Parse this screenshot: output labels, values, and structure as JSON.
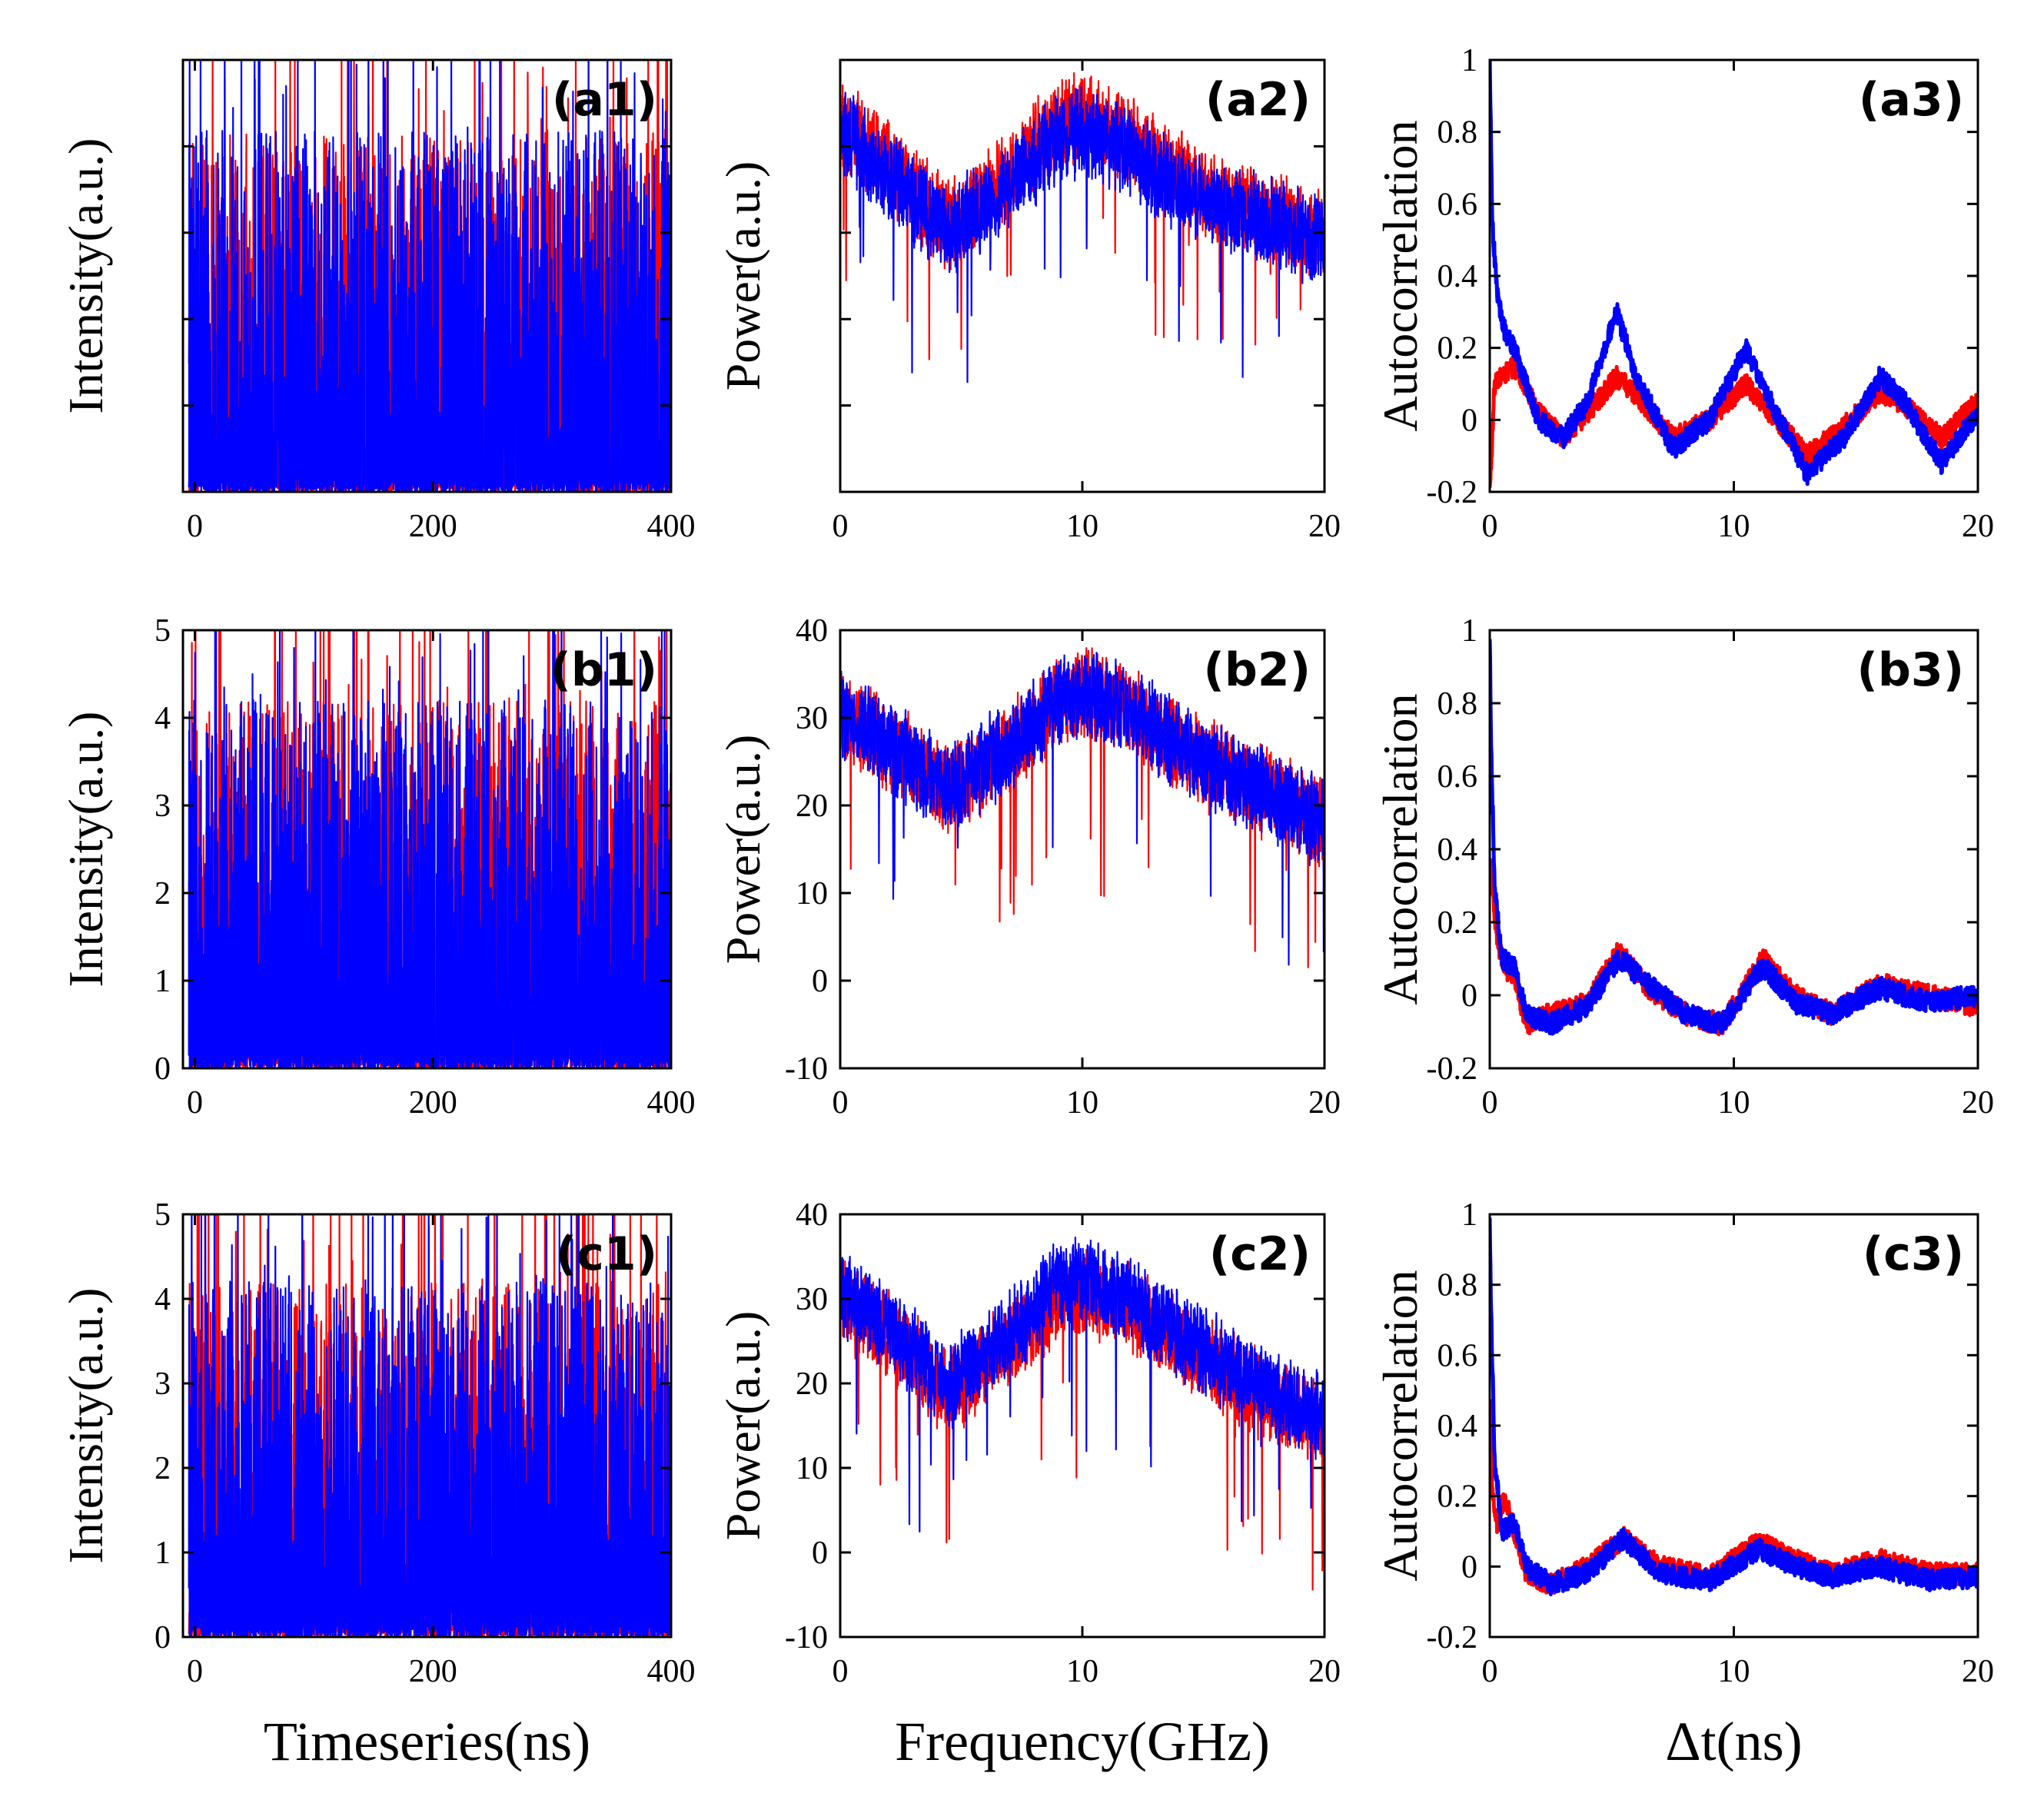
{
  "figure": {
    "colors": {
      "red": "#ff0000",
      "blue": "#0000ff",
      "axis": "#000000"
    },
    "bottom_xlabels": [
      "Timeseries(ns)",
      "Frequency(GHz)",
      "Δt(ns)"
    ]
  },
  "chart_data": [
    {
      "panel": "(a1)",
      "type": "line",
      "column": 0,
      "row": 0,
      "ylabel": "Intensity(a.u.)",
      "xlabel": "",
      "xlim": [
        -10,
        400
      ],
      "ylim": [
        0,
        5
      ],
      "xticks": [
        "0",
        "200",
        "400"
      ],
      "xtick_values": [
        0,
        200,
        400
      ],
      "yticks": [],
      "ytick_values": [],
      "series": [
        {
          "color": "#ff0000",
          "desc": "intensity timeseries, dense spiking, peaks up to ~5"
        },
        {
          "color": "#0000ff",
          "desc": "intensity timeseries, dense spiking, peaks up to ~5"
        }
      ]
    },
    {
      "panel": "(a2)",
      "type": "line",
      "column": 1,
      "row": 0,
      "ylabel": "Power(a.u.)",
      "xlabel": "",
      "xlim": [
        0,
        20
      ],
      "ylim": [
        -10,
        40
      ],
      "xticks": [
        "0",
        "10",
        "20"
      ],
      "xtick_values": [
        0,
        10,
        20
      ],
      "yticks": [],
      "ytick_values": [],
      "series": [
        {
          "color": "#ff0000",
          "x": [
            0,
            2,
            4.5,
            7,
            9,
            10,
            12,
            15,
            18,
            20
          ],
          "y": [
            36,
            31,
            24,
            30,
            36,
            37,
            34,
            28,
            25,
            23
          ]
        },
        {
          "color": "#0000ff",
          "x": [
            0,
            2,
            4.5,
            7,
            9,
            10,
            12,
            15,
            18,
            20
          ],
          "y": [
            35,
            30,
            23,
            29,
            34,
            35,
            32,
            27,
            24,
            22
          ]
        }
      ]
    },
    {
      "panel": "(a3)",
      "type": "line",
      "column": 2,
      "row": 0,
      "ylabel": "Autocorrelation",
      "xlabel": "",
      "xlim": [
        0,
        20
      ],
      "ylim": [
        -0.2,
        1
      ],
      "xticks": [
        "0",
        "10",
        "20"
      ],
      "xtick_values": [
        0,
        10,
        20
      ],
      "yticks": [
        "-0.2",
        "0",
        "0.2",
        "0.4",
        "0.6",
        "0.8",
        "1"
      ],
      "ytick_values": [
        -0.2,
        0,
        0.2,
        0.4,
        0.6,
        0.8,
        1
      ],
      "series": [
        {
          "color": "#ff0000",
          "x": [
            0,
            0.2,
            0.5,
            1,
            2,
            3,
            4,
            5.2,
            6,
            7.5,
            9,
            10.5,
            11.5,
            13,
            14.5,
            16,
            17,
            18.5,
            20
          ],
          "y": [
            -0.2,
            0.1,
            0.12,
            0.15,
            0.02,
            -0.05,
            0.02,
            0.12,
            0.07,
            -0.05,
            0.0,
            0.1,
            0.02,
            -0.1,
            -0.02,
            0.08,
            0.04,
            -0.05,
            0.05
          ]
        },
        {
          "color": "#0000ff",
          "x": [
            0,
            0.1,
            0.3,
            0.6,
            1,
            2,
            3,
            4,
            5.2,
            6,
            7.5,
            9,
            10.5,
            11.5,
            13,
            14.5,
            16,
            17,
            18.5,
            20
          ],
          "y": [
            1,
            0.55,
            0.35,
            0.25,
            0.2,
            0.0,
            -0.05,
            0.05,
            0.3,
            0.12,
            -0.08,
            0.0,
            0.2,
            0.05,
            -0.15,
            -0.05,
            0.12,
            0.05,
            -0.12,
            0.02
          ]
        }
      ]
    },
    {
      "panel": "(b1)",
      "type": "line",
      "column": 0,
      "row": 1,
      "ylabel": "Intensity(a.u.)",
      "xlabel": "",
      "xlim": [
        -10,
        400
      ],
      "ylim": [
        0,
        5
      ],
      "xticks": [
        "0",
        "200",
        "400"
      ],
      "xtick_values": [
        0,
        200,
        400
      ],
      "yticks": [
        "0",
        "1",
        "2",
        "3",
        "4",
        "5"
      ],
      "ytick_values": [
        0,
        1,
        2,
        3,
        4,
        5
      ],
      "series": [
        {
          "color": "#ff0000",
          "desc": "intensity timeseries, dense spiking, peaks up to ~5"
        },
        {
          "color": "#0000ff",
          "desc": "intensity timeseries, dense spiking, peaks up to ~5"
        }
      ]
    },
    {
      "panel": "(b2)",
      "type": "line",
      "column": 1,
      "row": 1,
      "ylabel": "Power(a.u.)",
      "xlabel": "",
      "xlim": [
        0,
        20
      ],
      "ylim": [
        -10,
        40
      ],
      "xticks": [
        "0",
        "10",
        "20"
      ],
      "xtick_values": [
        0,
        10,
        20
      ],
      "yticks": [
        "-10",
        "0",
        "10",
        "20",
        "30",
        "40"
      ],
      "ytick_values": [
        -10,
        0,
        10,
        20,
        30,
        40
      ],
      "series": [
        {
          "color": "#ff0000",
          "x": [
            0,
            2,
            4.5,
            7,
            9,
            10,
            12,
            15,
            18,
            20
          ],
          "y": [
            34,
            30,
            25,
            30,
            35,
            36,
            34,
            28,
            24,
            21
          ]
        },
        {
          "color": "#0000ff",
          "x": [
            0,
            2,
            4.5,
            7,
            9,
            10,
            12,
            15,
            18,
            20
          ],
          "y": [
            34,
            30,
            25,
            30,
            35,
            36,
            34,
            28,
            24,
            21
          ]
        }
      ]
    },
    {
      "panel": "(b3)",
      "type": "line",
      "column": 2,
      "row": 1,
      "ylabel": "Autocorrelation",
      "xlabel": "",
      "xlim": [
        0,
        20
      ],
      "ylim": [
        -0.2,
        1
      ],
      "xticks": [
        "0",
        "10",
        "20"
      ],
      "xtick_values": [
        0,
        10,
        20
      ],
      "yticks": [
        "-0.2",
        "0",
        "0.2",
        "0.4",
        "0.6",
        "0.8",
        "1"
      ],
      "ytick_values": [
        -0.2,
        0,
        0.2,
        0.4,
        0.6,
        0.8,
        1
      ],
      "series": [
        {
          "color": "#ff0000",
          "x": [
            0,
            0.1,
            0.3,
            0.6,
            1,
            1.5,
            2.5,
            4,
            5.3,
            6.5,
            8,
            9.5,
            11.2,
            12.5,
            14,
            16,
            18,
            20
          ],
          "y": [
            0.35,
            0.3,
            0.15,
            0.08,
            0.05,
            -0.08,
            -0.05,
            -0.02,
            0.12,
            0.02,
            -0.05,
            -0.08,
            0.1,
            0.0,
            -0.05,
            0.03,
            0.0,
            -0.03
          ]
        },
        {
          "color": "#0000ff",
          "x": [
            0,
            0.05,
            0.2,
            0.5,
            1,
            1.5,
            2.5,
            4,
            5.3,
            6.5,
            8,
            9.5,
            11.2,
            12.5,
            14,
            16,
            18,
            20
          ],
          "y": [
            1,
            0.7,
            0.3,
            0.1,
            0.08,
            -0.05,
            -0.08,
            -0.03,
            0.1,
            0.03,
            -0.05,
            -0.08,
            0.08,
            -0.02,
            -0.05,
            0.02,
            -0.02,
            0.0
          ]
        }
      ]
    },
    {
      "panel": "(c1)",
      "type": "line",
      "column": 0,
      "row": 2,
      "ylabel": "Intensity(a.u.)",
      "xlabel": "Timeseries(ns)",
      "xlim": [
        -10,
        400
      ],
      "ylim": [
        0,
        5
      ],
      "xticks": [
        "0",
        "200",
        "400"
      ],
      "xtick_values": [
        0,
        200,
        400
      ],
      "yticks": [
        "0",
        "1",
        "2",
        "3",
        "4",
        "5"
      ],
      "ytick_values": [
        0,
        1,
        2,
        3,
        4,
        5
      ],
      "series": [
        {
          "color": "#ff0000",
          "desc": "intensity timeseries, dense spiking, peaks up to ~5"
        },
        {
          "color": "#0000ff",
          "desc": "intensity timeseries, dense spiking, peaks up to ~5"
        }
      ]
    },
    {
      "panel": "(c2)",
      "type": "line",
      "column": 1,
      "row": 2,
      "ylabel": "Power(a.u.)",
      "xlabel": "Frequency(GHz)",
      "xlim": [
        0,
        20
      ],
      "ylim": [
        -10,
        40
      ],
      "xticks": [
        "0",
        "10",
        "20"
      ],
      "xtick_values": [
        0,
        10,
        20
      ],
      "yticks": [
        "-10",
        "0",
        "10",
        "20",
        "30",
        "40"
      ],
      "ytick_values": [
        -10,
        0,
        10,
        20,
        30,
        40
      ],
      "series": [
        {
          "color": "#ff0000",
          "x": [
            0,
            2,
            4.5,
            7,
            9,
            10,
            12,
            15,
            18,
            20
          ],
          "y": [
            33,
            29,
            22,
            28,
            33,
            34,
            32,
            26,
            21,
            18
          ]
        },
        {
          "color": "#0000ff",
          "x": [
            0,
            2,
            4.5,
            7,
            9,
            10,
            12,
            15,
            18,
            20
          ],
          "y": [
            34,
            30,
            23,
            29,
            35,
            36,
            33,
            27,
            22,
            19
          ]
        }
      ]
    },
    {
      "panel": "(c3)",
      "type": "line",
      "column": 2,
      "row": 2,
      "ylabel": "Autocorrelation",
      "xlabel": "Δt(ns)",
      "xlim": [
        0,
        20
      ],
      "ylim": [
        -0.2,
        1
      ],
      "xticks": [
        "0",
        "10",
        "20"
      ],
      "xtick_values": [
        0,
        10,
        20
      ],
      "yticks": [
        "-0.2",
        "0",
        "0.2",
        "0.4",
        "0.6",
        "0.8",
        "1"
      ],
      "ytick_values": [
        -0.2,
        0,
        0.2,
        0.4,
        0.6,
        0.8,
        1
      ],
      "series": [
        {
          "color": "#ff0000",
          "x": [
            0,
            0.1,
            0.3,
            0.6,
            1,
            1.5,
            2.5,
            4,
            5.5,
            7,
            9,
            11,
            12.5,
            14,
            16,
            18,
            20
          ],
          "y": [
            0.45,
            0.2,
            0.12,
            0.2,
            0.1,
            -0.02,
            -0.05,
            0.0,
            0.08,
            0.0,
            -0.03,
            0.07,
            0.02,
            -0.02,
            0.02,
            -0.02,
            -0.02
          ]
        },
        {
          "color": "#0000ff",
          "x": [
            0,
            0.05,
            0.2,
            0.5,
            1,
            1.5,
            2.5,
            4,
            5.5,
            7,
            9,
            11,
            12.5,
            14,
            16,
            18,
            20
          ],
          "y": [
            1,
            0.75,
            0.3,
            0.1,
            0.13,
            0.0,
            -0.05,
            -0.02,
            0.08,
            -0.02,
            -0.04,
            0.05,
            0.0,
            -0.03,
            0.0,
            -0.04,
            -0.03
          ]
        }
      ]
    }
  ]
}
